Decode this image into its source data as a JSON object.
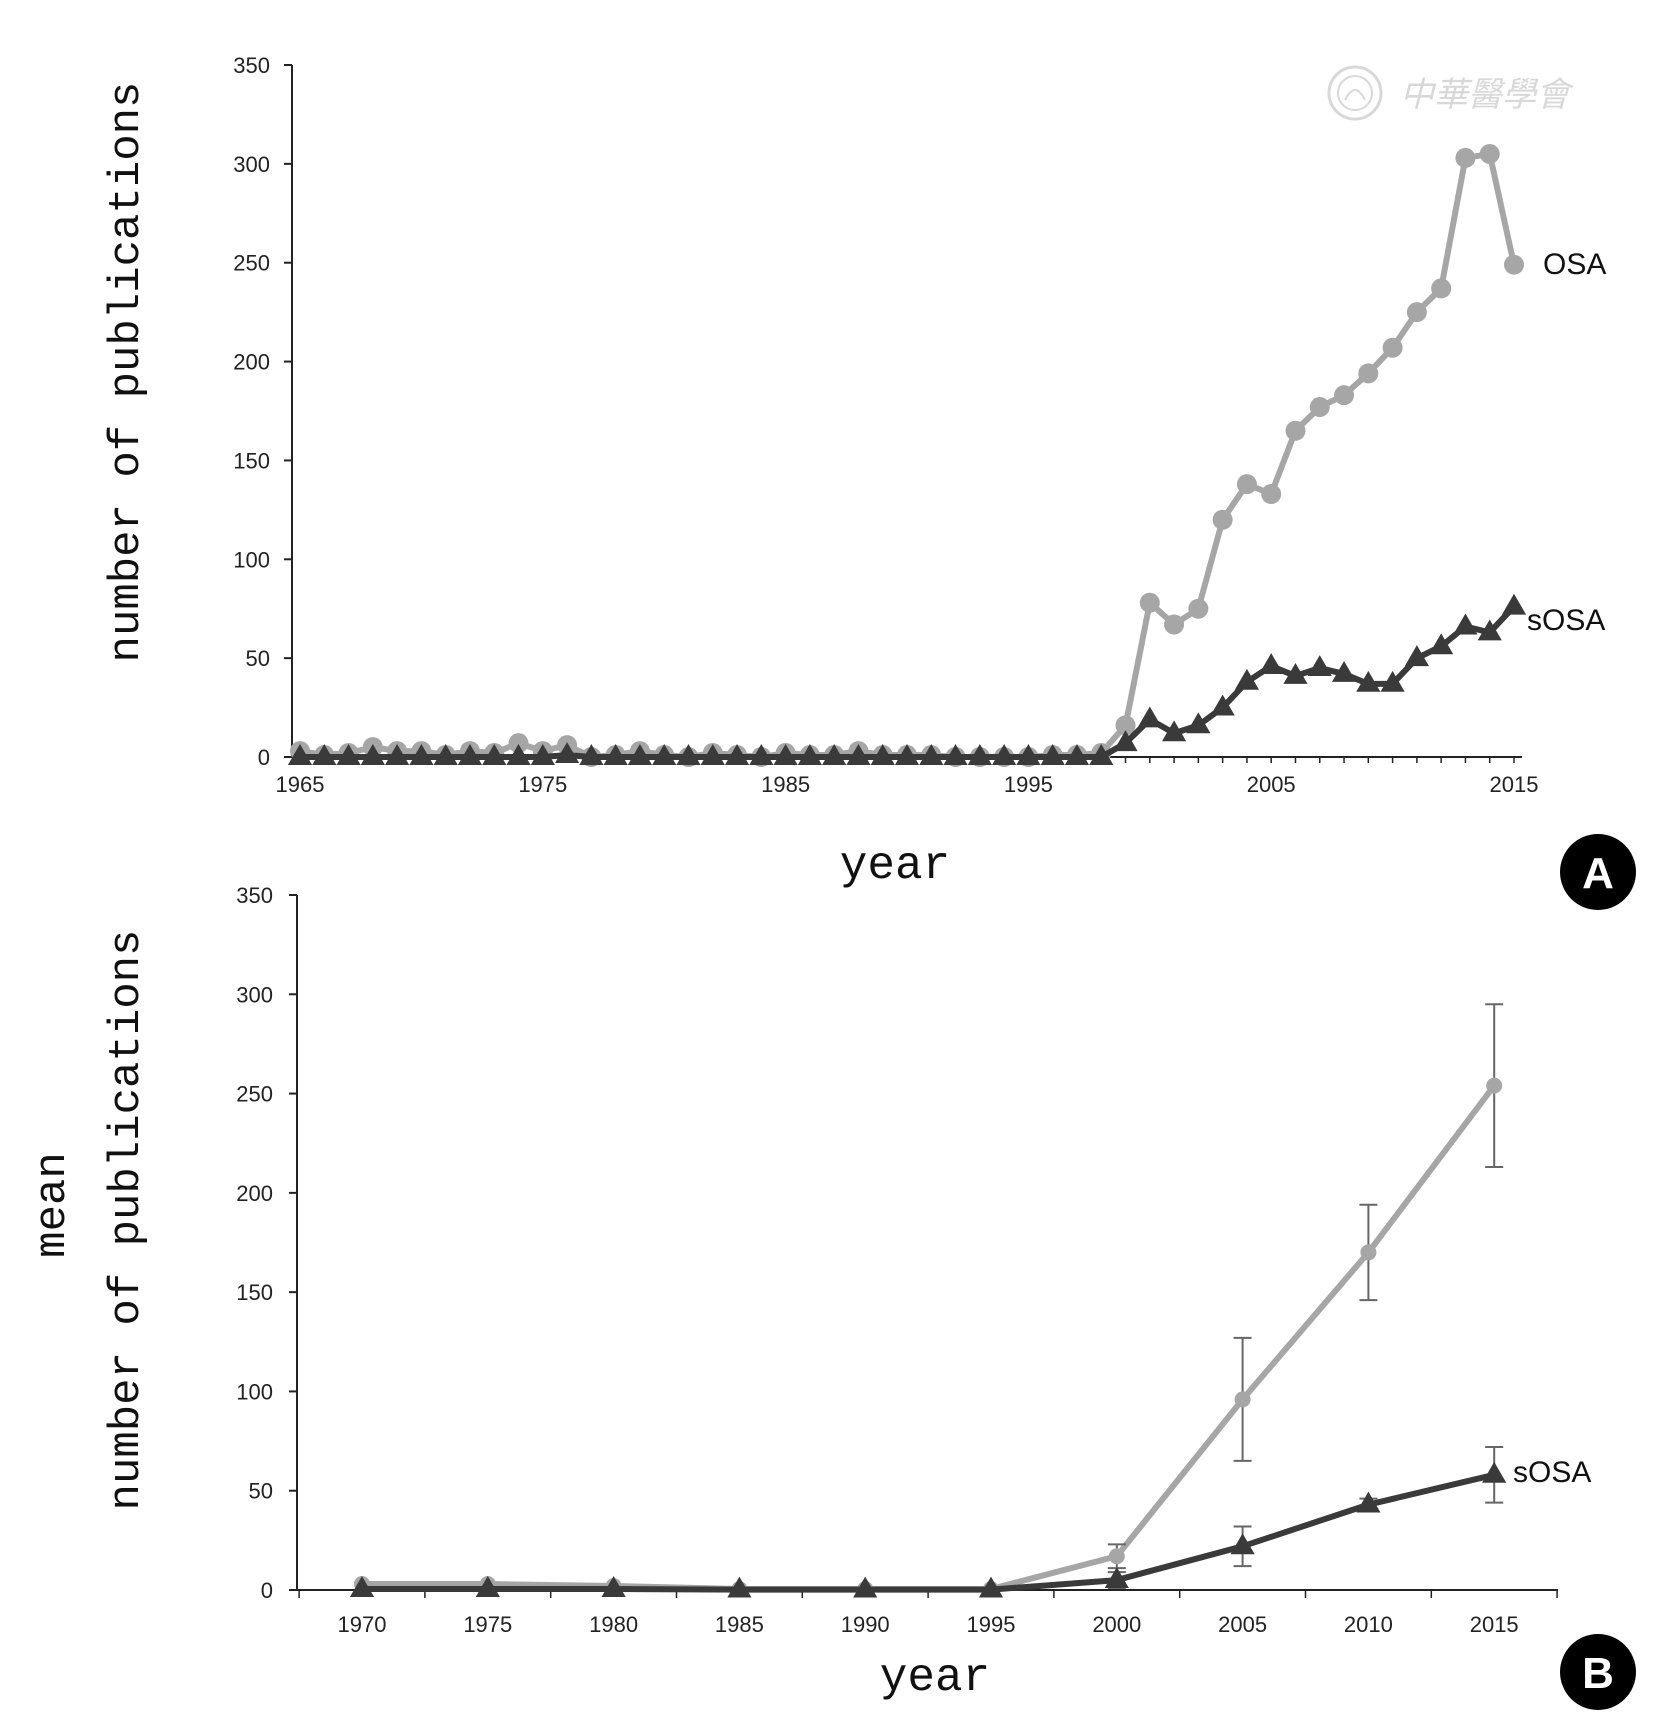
{
  "watermark": {
    "text": "中華醫學會"
  },
  "colors": {
    "osa": "#a6a6a6",
    "sosa": "#3a3a3a",
    "axis": "#222222",
    "badge": "#000000"
  },
  "chart_data": [
    {
      "panel": "A",
      "type": "line",
      "xlabel": "year",
      "ylabel": "number of publications",
      "ylim": [
        0,
        350
      ],
      "yticks": [
        0,
        50,
        100,
        150,
        200,
        250,
        300,
        350
      ],
      "xlim": [
        1965,
        2015
      ],
      "xticks": [
        1965,
        1975,
        1985,
        1995,
        2005,
        2015
      ],
      "grid": false,
      "series": [
        {
          "name": "OSA",
          "marker": "circle",
          "x": [
            1965,
            1966,
            1967,
            1968,
            1969,
            1970,
            1971,
            1972,
            1973,
            1974,
            1975,
            1976,
            1977,
            1978,
            1979,
            1980,
            1981,
            1982,
            1983,
            1984,
            1985,
            1986,
            1987,
            1988,
            1989,
            1990,
            1991,
            1992,
            1993,
            1994,
            1995,
            1996,
            1997,
            1998,
            1999,
            2000,
            2001,
            2002,
            2003,
            2004,
            2005,
            2006,
            2007,
            2008,
            2009,
            2010,
            2011,
            2012,
            2013,
            2014,
            2015
          ],
          "y": [
            3,
            1,
            2,
            5,
            3,
            3,
            1,
            3,
            2,
            7,
            3,
            6,
            0,
            1,
            3,
            1,
            0,
            2,
            1,
            0,
            2,
            1,
            1,
            3,
            1,
            1,
            1,
            0,
            0,
            0,
            0,
            1,
            1,
            2,
            16,
            78,
            67,
            75,
            120,
            138,
            133,
            165,
            177,
            183,
            194,
            207,
            225,
            237,
            303,
            305,
            249
          ]
        },
        {
          "name": "sOSA",
          "marker": "triangle",
          "x": [
            1965,
            1966,
            1967,
            1968,
            1969,
            1970,
            1971,
            1972,
            1973,
            1974,
            1975,
            1976,
            1977,
            1978,
            1979,
            1980,
            1981,
            1982,
            1983,
            1984,
            1985,
            1986,
            1987,
            1988,
            1989,
            1990,
            1991,
            1992,
            1993,
            1994,
            1995,
            1996,
            1997,
            1998,
            1999,
            2000,
            2001,
            2002,
            2003,
            2004,
            2005,
            2006,
            2007,
            2008,
            2009,
            2010,
            2011,
            2012,
            2013,
            2014,
            2015
          ],
          "y": [
            0,
            0,
            0,
            0,
            0,
            0,
            0,
            0,
            0,
            0,
            0,
            1,
            0,
            0,
            0,
            0,
            0,
            0,
            0,
            0,
            0,
            0,
            0,
            0,
            0,
            0,
            0,
            0,
            0,
            0,
            0,
            0,
            0,
            0,
            7,
            19,
            12,
            16,
            25,
            38,
            46,
            41,
            45,
            42,
            37,
            37,
            50,
            56,
            66,
            63,
            76
          ]
        }
      ]
    },
    {
      "panel": "B",
      "type": "line",
      "xlabel": "year",
      "ylabel": [
        "mean",
        "number of publications"
      ],
      "ylim": [
        0,
        350
      ],
      "yticks": [
        0,
        50,
        100,
        150,
        200,
        250,
        300,
        350
      ],
      "categories": [
        "1970",
        "1975",
        "1980",
        "1985",
        "1990",
        "1995",
        "2000",
        "2005",
        "2010",
        "2015"
      ],
      "grid": false,
      "series": [
        {
          "name": "",
          "marker": "circle",
          "values": [
            3,
            3,
            2,
            0.5,
            0.5,
            0.5,
            17,
            96,
            170,
            254
          ],
          "error": [
            null,
            null,
            null,
            null,
            null,
            null,
            6,
            31,
            24,
            41
          ]
        },
        {
          "name": "sOSA",
          "marker": "triangle",
          "values": [
            0.5,
            0.5,
            0.5,
            0.2,
            0.2,
            0.2,
            5,
            22,
            43,
            58
          ],
          "error": [
            null,
            null,
            null,
            null,
            null,
            null,
            4,
            10,
            3,
            14
          ]
        }
      ]
    }
  ]
}
